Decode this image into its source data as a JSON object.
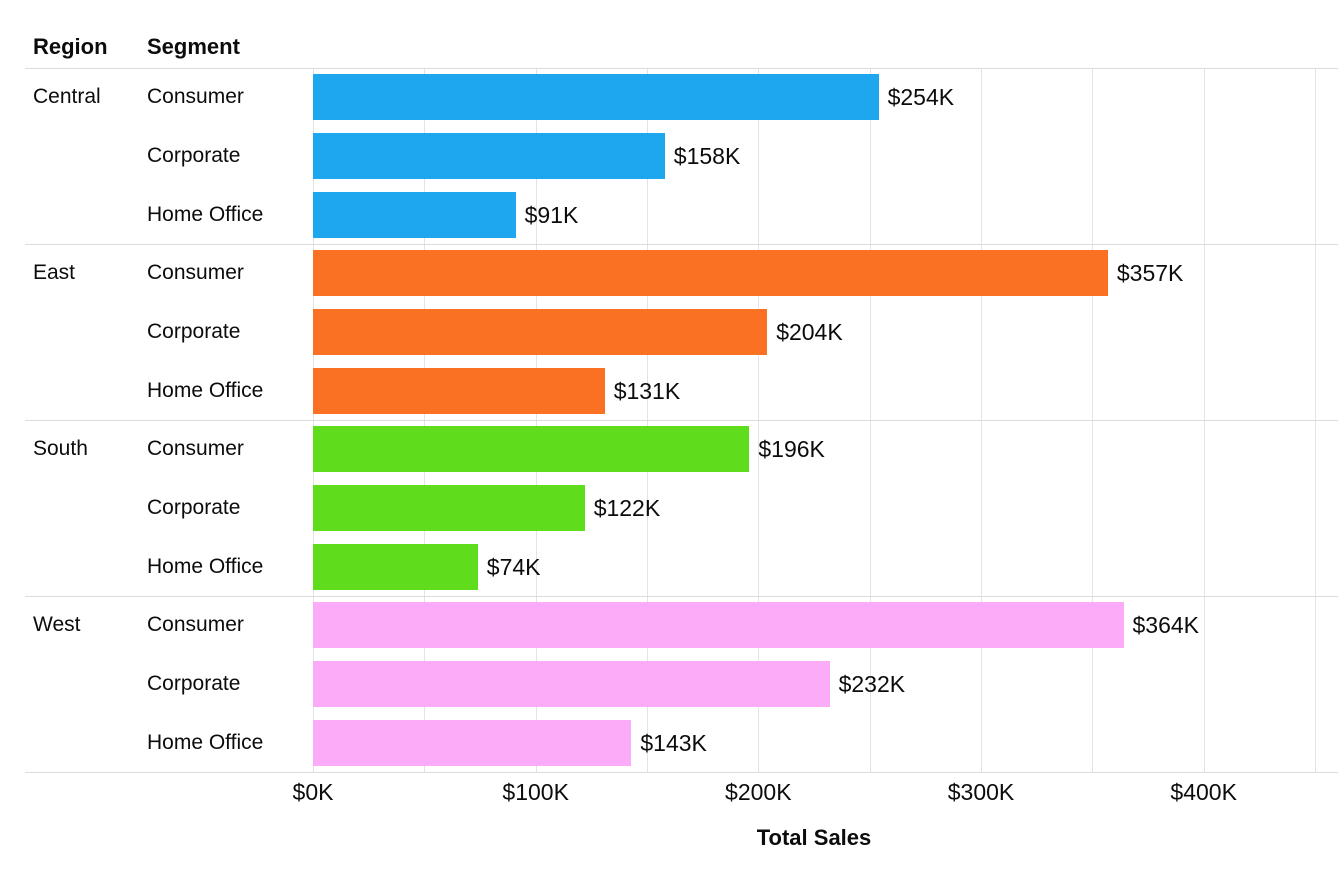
{
  "header": {
    "region": "Region",
    "segment": "Segment"
  },
  "chart_data": {
    "type": "bar",
    "orientation": "horizontal",
    "xlabel": "Total Sales",
    "xlim": [
      0,
      450
    ],
    "gridline_step_k": 50,
    "grid": true,
    "x_ticks": [
      {
        "value": 0,
        "label": "$0K"
      },
      {
        "value": 100,
        "label": "$100K"
      },
      {
        "value": 200,
        "label": "$200K"
      },
      {
        "value": 300,
        "label": "$300K"
      },
      {
        "value": 400,
        "label": "$400K"
      }
    ],
    "groups": [
      {
        "region": "Central",
        "color": "#1EA7EE",
        "bars": [
          {
            "segment": "Consumer",
            "value_k": 254,
            "label": "$254K"
          },
          {
            "segment": "Corporate",
            "value_k": 158,
            "label": "$158K"
          },
          {
            "segment": "Home Office",
            "value_k": 91,
            "label": "$91K"
          }
        ]
      },
      {
        "region": "East",
        "color": "#FB7124",
        "bars": [
          {
            "segment": "Consumer",
            "value_k": 357,
            "label": "$357K"
          },
          {
            "segment": "Corporate",
            "value_k": 204,
            "label": "$204K"
          },
          {
            "segment": "Home Office",
            "value_k": 131,
            "label": "$131K"
          }
        ]
      },
      {
        "region": "South",
        "color": "#5FDD1D",
        "bars": [
          {
            "segment": "Consumer",
            "value_k": 196,
            "label": "$196K"
          },
          {
            "segment": "Corporate",
            "value_k": 122,
            "label": "$122K"
          },
          {
            "segment": "Home Office",
            "value_k": 74,
            "label": "$74K"
          }
        ]
      },
      {
        "region": "West",
        "color": "#FCABF9",
        "bars": [
          {
            "segment": "Consumer",
            "value_k": 364,
            "label": "$364K"
          },
          {
            "segment": "Corporate",
            "value_k": 232,
            "label": "$232K"
          },
          {
            "segment": "Home Office",
            "value_k": 143,
            "label": "$143K"
          }
        ]
      }
    ]
  },
  "colors": {
    "background": "#ffffff",
    "text": "#0c0c0c",
    "gridline": "#e3e3e3",
    "divider": "#dcdcdc"
  }
}
